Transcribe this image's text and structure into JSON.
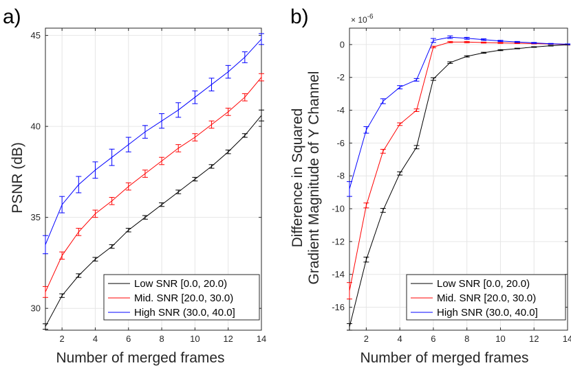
{
  "chart_data": [
    {
      "type": "line",
      "panel_label": "a)",
      "xlabel": "Number of merged frames",
      "ylabel": "PSNR (dB)",
      "xlim": [
        1,
        14
      ],
      "ylim": [
        28.8,
        45.4
      ],
      "xticks": [
        2,
        4,
        6,
        8,
        10,
        12,
        14
      ],
      "yticks": [
        30,
        35,
        40,
        45
      ],
      "x": [
        1,
        2,
        3,
        4,
        5,
        6,
        7,
        8,
        9,
        10,
        11,
        12,
        13,
        14
      ],
      "grid": true,
      "legend_position": "bottom-right",
      "series": [
        {
          "name": "Low SNR [0.0, 20.0)",
          "color": "#000000",
          "values": [
            29.0,
            30.7,
            31.8,
            32.7,
            33.4,
            34.3,
            35.0,
            35.7,
            36.4,
            37.1,
            37.8,
            38.6,
            39.5,
            40.6
          ],
          "err": [
            0.15,
            0.1,
            0.1,
            0.1,
            0.1,
            0.1,
            0.1,
            0.1,
            0.1,
            0.1,
            0.1,
            0.1,
            0.1,
            0.3
          ]
        },
        {
          "name": "Mid. SNR [20.0, 30.0)",
          "color": "#ff0000",
          "values": [
            30.9,
            32.9,
            34.2,
            35.2,
            35.9,
            36.7,
            37.4,
            38.1,
            38.8,
            39.4,
            40.1,
            40.8,
            41.6,
            42.7
          ],
          "err": [
            0.3,
            0.2,
            0.2,
            0.2,
            0.2,
            0.2,
            0.2,
            0.2,
            0.2,
            0.2,
            0.2,
            0.2,
            0.2,
            0.2
          ]
        },
        {
          "name": "High SNR (30.0, 40.0]",
          "color": "#0000ff",
          "values": [
            33.5,
            35.7,
            36.8,
            37.6,
            38.3,
            39.0,
            39.7,
            40.3,
            40.9,
            41.6,
            42.3,
            43.0,
            43.8,
            44.8
          ],
          "err": [
            0.5,
            0.45,
            0.45,
            0.45,
            0.45,
            0.4,
            0.35,
            0.4,
            0.4,
            0.35,
            0.35,
            0.35,
            0.3,
            0.3
          ]
        }
      ]
    },
    {
      "type": "line",
      "panel_label": "b)",
      "xlabel": "Number of merged frames",
      "ylabel_lines": [
        "Difference in Squared",
        "Gradient Magnitude of Y Channel"
      ],
      "y_exponent_base": "× 10",
      "y_exponent_power": "-6",
      "xlim": [
        1,
        14
      ],
      "ylim": [
        -17.4,
        1.0
      ],
      "xticks": [
        2,
        4,
        6,
        8,
        10,
        12,
        14
      ],
      "yticks": [
        0,
        -2,
        -4,
        -6,
        -8,
        -10,
        -12,
        -14,
        -16
      ],
      "x": [
        1,
        2,
        3,
        4,
        5,
        6,
        7,
        8,
        9,
        10,
        11,
        12,
        13,
        14
      ],
      "grid": true,
      "legend_position": "bottom-right",
      "series": [
        {
          "name": "Low SNR [0.0, 20.0)",
          "color": "#000000",
          "values": [
            -17.2,
            -13.1,
            -10.1,
            -7.85,
            -6.25,
            -2.1,
            -1.1,
            -0.72,
            -0.5,
            -0.34,
            -0.24,
            -0.15,
            -0.07,
            -0.01
          ],
          "err": [
            0.2,
            0.15,
            0.12,
            0.1,
            0.1,
            0.08,
            0.05,
            0.04,
            0.03,
            0.03,
            0.02,
            0.02,
            0.02,
            0.02
          ]
        },
        {
          "name": "Mid. SNR [20.0, 30.0)",
          "color": "#ff0000",
          "values": [
            -15.0,
            -9.8,
            -6.5,
            -4.85,
            -4.0,
            -0.15,
            0.15,
            0.15,
            0.12,
            0.1,
            0.08,
            0.06,
            0.04,
            0.01
          ],
          "err": [
            0.5,
            0.15,
            0.12,
            0.08,
            0.08,
            0.05,
            0.04,
            0.04,
            0.03,
            0.03,
            0.02,
            0.02,
            0.02,
            0.02
          ]
        },
        {
          "name": "High SNR (30.0, 40.0]",
          "color": "#0000ff",
          "values": [
            -8.8,
            -5.2,
            -3.45,
            -2.6,
            -2.15,
            0.25,
            0.45,
            0.38,
            0.3,
            0.22,
            0.16,
            0.1,
            0.05,
            0.02
          ],
          "err": [
            0.45,
            0.2,
            0.15,
            0.1,
            0.08,
            0.12,
            0.08,
            0.06,
            0.05,
            0.04,
            0.03,
            0.03,
            0.02,
            0.02
          ]
        }
      ]
    }
  ]
}
